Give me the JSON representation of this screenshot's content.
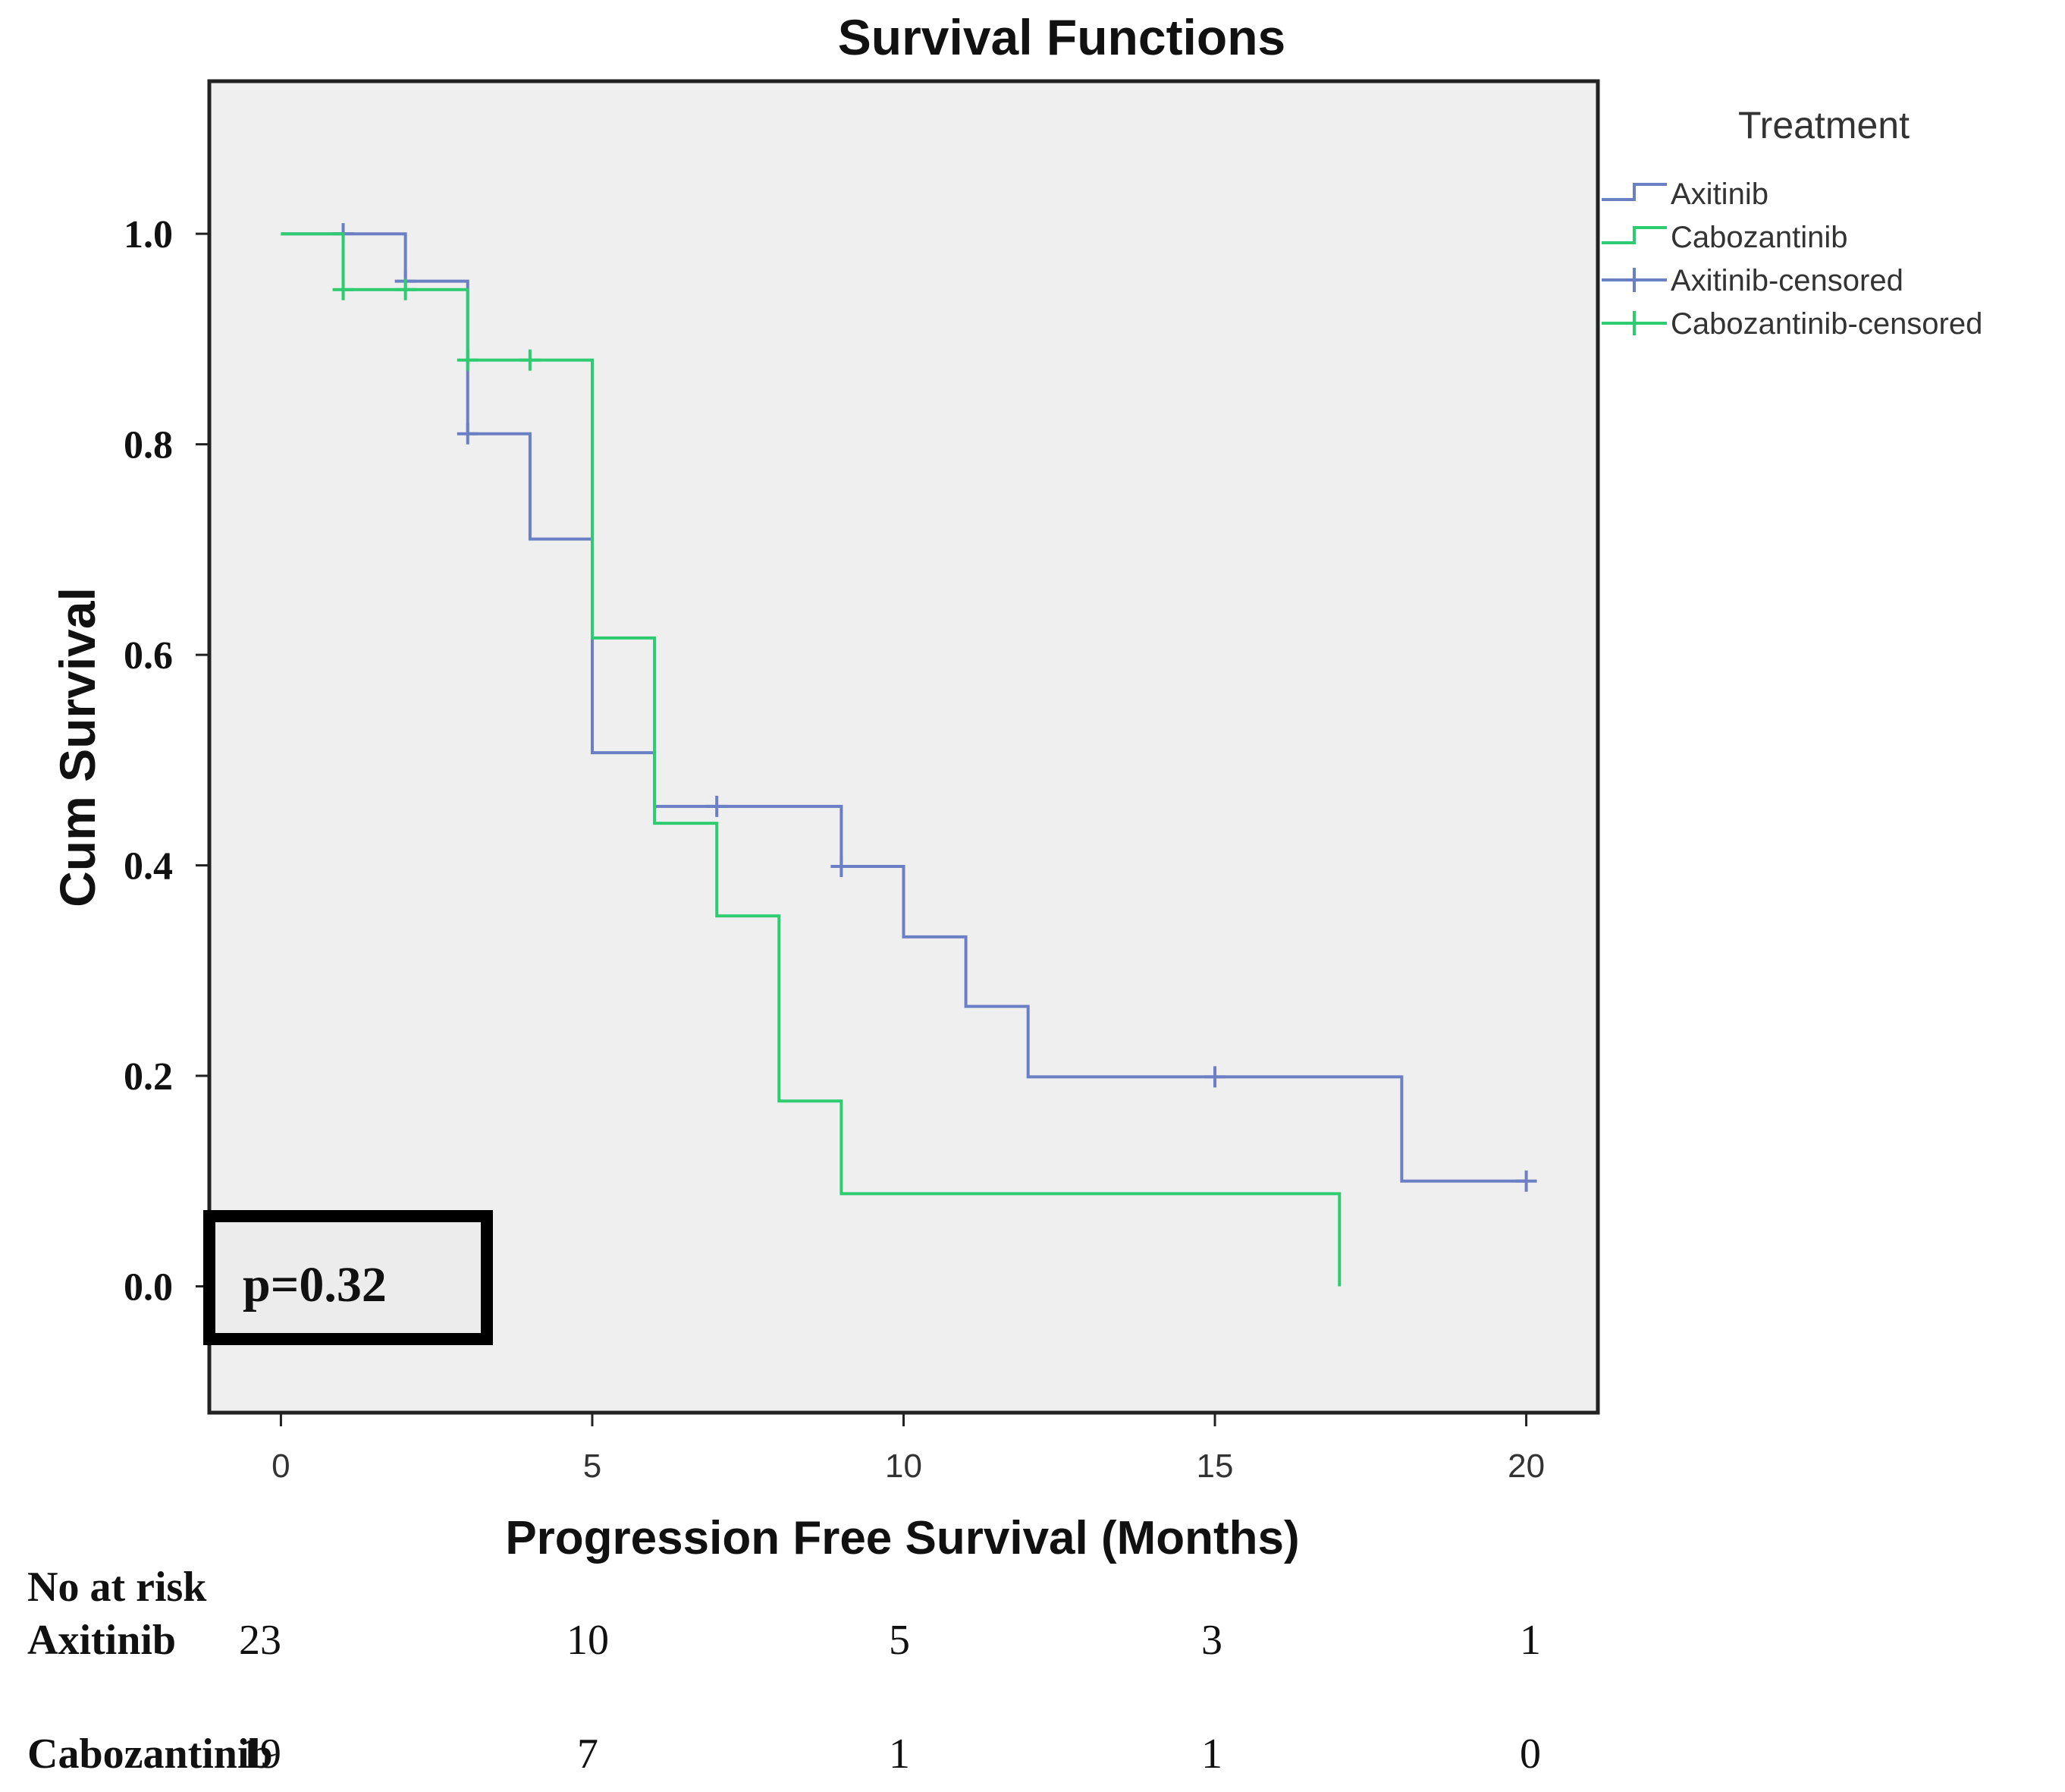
{
  "chart_data": {
    "type": "line",
    "title": "Survival Functions",
    "xlabel": "Progression Free Survival (Months)",
    "ylabel": "Cum Survival",
    "xlim": [
      -1.15,
      21.15
    ],
    "ylim": [
      -0.12,
      1.145
    ],
    "x_ticks": [
      0,
      5,
      10,
      15,
      20
    ],
    "x_tick_labels": [
      "0",
      "5",
      "10",
      "15",
      "20"
    ],
    "y_ticks": [
      0.0,
      0.2,
      0.4,
      0.6,
      0.8,
      1.0
    ],
    "y_tick_labels": [
      "0.0",
      "0.2",
      "0.4",
      "0.6",
      "0.8",
      "1.0"
    ],
    "grid": false,
    "legend": {
      "title": "Treatment",
      "position": "right",
      "entries": [
        "Axitinib",
        "Cabozantinib",
        "Axitinib-censored",
        "Cabozantinib-censored"
      ]
    },
    "series": [
      {
        "name": "Axitinib",
        "color": "#6B7FC4",
        "step_points": [
          [
            0,
            1.0
          ],
          [
            2,
            1.0
          ],
          [
            2,
            0.955
          ],
          [
            3,
            0.955
          ],
          [
            3,
            0.81
          ],
          [
            4,
            0.81
          ],
          [
            4,
            0.71
          ],
          [
            5,
            0.71
          ],
          [
            5,
            0.507
          ],
          [
            6,
            0.507
          ],
          [
            6,
            0.456
          ],
          [
            9,
            0.456
          ],
          [
            9,
            0.399
          ],
          [
            10,
            0.399
          ],
          [
            10,
            0.332
          ],
          [
            11,
            0.332
          ],
          [
            11,
            0.266
          ],
          [
            12,
            0.266
          ],
          [
            12,
            0.199
          ],
          [
            18,
            0.199
          ],
          [
            18,
            0.1
          ],
          [
            20,
            0.1
          ]
        ],
        "censored": [
          [
            1,
            1.0
          ],
          [
            2,
            0.955
          ],
          [
            3,
            0.81
          ],
          [
            7,
            0.456
          ],
          [
            9,
            0.399
          ],
          [
            15,
            0.199
          ],
          [
            20,
            0.1
          ]
        ]
      },
      {
        "name": "Cabozantinib",
        "color": "#2ECC71",
        "step_points": [
          [
            0,
            1.0
          ],
          [
            1,
            1.0
          ],
          [
            1,
            0.947
          ],
          [
            3,
            0.947
          ],
          [
            3,
            0.88
          ],
          [
            5,
            0.88
          ],
          [
            5,
            0.616
          ],
          [
            6,
            0.616
          ],
          [
            6,
            0.44
          ],
          [
            7,
            0.44
          ],
          [
            7,
            0.352
          ],
          [
            8,
            0.352
          ],
          [
            8,
            0.176
          ],
          [
            9,
            0.176
          ],
          [
            9,
            0.088
          ],
          [
            17,
            0.088
          ],
          [
            17,
            0.0
          ]
        ],
        "censored": [
          [
            1,
            0.947
          ],
          [
            2,
            0.947
          ],
          [
            3,
            0.88
          ],
          [
            4,
            0.88
          ]
        ]
      }
    ],
    "annotation": "p=0.32",
    "risk_table": {
      "heading": "No at risk",
      "rows": [
        {
          "label": "Axitinib",
          "values": [
            "23",
            "10",
            "5",
            "3",
            "1"
          ]
        },
        {
          "label": "Cabozantinib",
          "values": [
            "19",
            "7",
            "1",
            "1",
            "0"
          ]
        }
      ]
    }
  }
}
